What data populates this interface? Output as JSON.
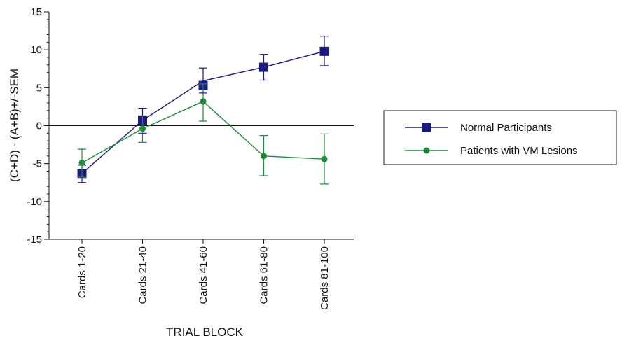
{
  "chart_data": {
    "type": "line",
    "title": "",
    "xlabel": "TRIAL BLOCK",
    "ylabel": "(C+D) - (A+B)+/-SEM",
    "ylim": [
      -15,
      15
    ],
    "yticks": [
      -15,
      -10,
      -5,
      0,
      5,
      10,
      15
    ],
    "y_minor_step": 1,
    "categories": [
      "Cards 1-20",
      "Cards 21-40",
      "Cards 41-60",
      "Cards 61-80",
      "Cards 81-100"
    ],
    "grid": false,
    "zero_line": true,
    "legend_position": "right",
    "series": [
      {
        "name": "Normal Participants",
        "color": "#1a1a80",
        "marker": "square",
        "values": [
          -6.3,
          0.7,
          5.3,
          7.7,
          9.8
        ],
        "line_values": [
          -6.3,
          0.7,
          5.9,
          7.7,
          9.8
        ],
        "err_low": [
          -7.5,
          -1.0,
          4.3,
          6.0,
          7.9
        ],
        "err_high": [
          -5.2,
          2.3,
          7.6,
          9.4,
          11.8
        ]
      },
      {
        "name": "Patients with VM Lesions",
        "color": "#1a8c3a",
        "marker": "circle",
        "values": [
          -4.9,
          -0.4,
          3.2,
          -4.0,
          -4.4
        ],
        "line_values": [
          -4.9,
          -0.4,
          3.2,
          -4.0,
          -4.4
        ],
        "err_low": [
          -6.8,
          -2.2,
          0.6,
          -6.6,
          -7.7
        ],
        "err_high": [
          -3.1,
          1.3,
          5.5,
          -1.3,
          -1.1
        ]
      }
    ]
  }
}
